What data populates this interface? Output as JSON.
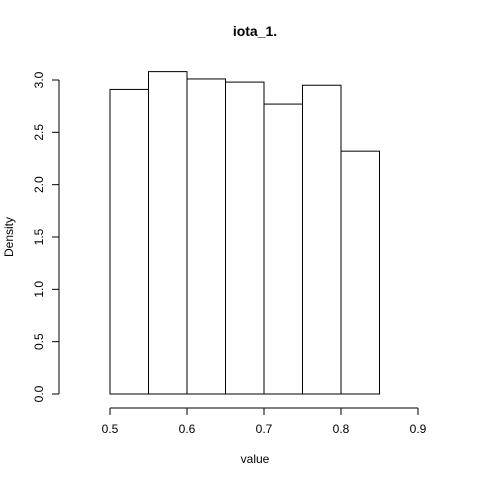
{
  "chart_data": {
    "type": "bar",
    "title": "iota_1.",
    "xlabel": "value",
    "ylabel": "Density",
    "bins": [
      {
        "from": 0.5,
        "to": 0.55,
        "value": 2.91
      },
      {
        "from": 0.55,
        "to": 0.6,
        "value": 3.08
      },
      {
        "from": 0.6,
        "to": 0.65,
        "value": 3.01
      },
      {
        "from": 0.65,
        "to": 0.7,
        "value": 2.98
      },
      {
        "from": 0.7,
        "to": 0.75,
        "value": 2.77
      },
      {
        "from": 0.75,
        "to": 0.8,
        "value": 2.95
      },
      {
        "from": 0.8,
        "to": 0.85,
        "value": 2.32
      }
    ],
    "x_ticks": [
      "0.5",
      "0.6",
      "0.7",
      "0.8",
      "0.9"
    ],
    "y_ticks": [
      "0.0",
      "0.5",
      "1.0",
      "1.5",
      "2.0",
      "2.5",
      "3.0"
    ],
    "xlim": [
      0.5,
      0.9
    ],
    "ylim": [
      0,
      3.0
    ],
    "grid": false,
    "legend": "none"
  }
}
